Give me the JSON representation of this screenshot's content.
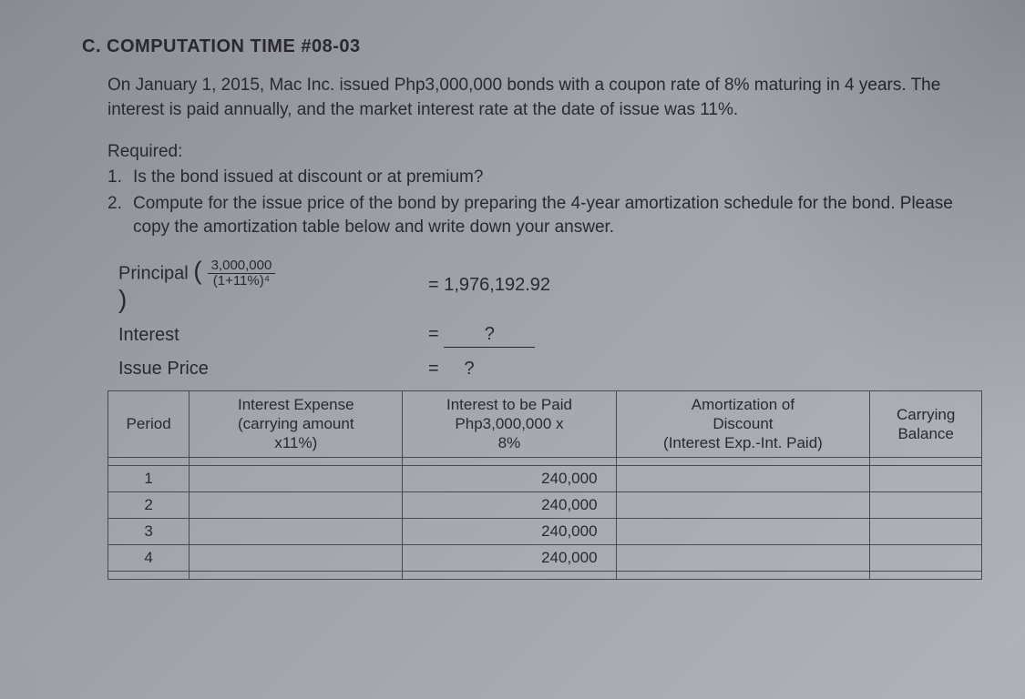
{
  "heading": "C. COMPUTATION TIME #08-03",
  "paragraph": "On January 1, 2015, Mac Inc. issued Php3,000,000 bonds with a coupon rate of 8% maturing in 4 years. The interest is paid annually, and the market interest rate at the date of issue was 11%.",
  "required_label": "Required:",
  "req1_num": "1.",
  "req1_text": "Is the bond issued at discount or at premium?",
  "req2_num": "2.",
  "req2_text": "Compute for the issue price of the bond by preparing the 4-year amortization schedule for the bond. Please copy the amortization table below and write down your answer.",
  "principal_label": "Principal",
  "frac_num": "3,000,000",
  "frac_den": "(1+11%)⁴",
  "principal_result": "= 1,976,192.92",
  "interest_label": "Interest",
  "interest_eq": "=",
  "interest_result": "?",
  "issue_label": "Issue Price",
  "issue_eq": "=",
  "issue_result": "?",
  "table": {
    "headers": {
      "period": "Period",
      "interest_expense": "Interest Expense\n(carrying amount\nx11%)",
      "interest_paid": "Interest to be Paid\nPhp3,000,000 x\n8%",
      "amortization": "Amortization of\nDiscount\n(Interest Exp.-Int. Paid)",
      "carrying": "Carrying\nBalance"
    },
    "rows": [
      {
        "period": "",
        "ie": "",
        "itp": "",
        "amort": "",
        "carry": ""
      },
      {
        "period": "1",
        "ie": "",
        "itp": "240,000",
        "amort": "",
        "carry": ""
      },
      {
        "period": "2",
        "ie": "",
        "itp": "240,000",
        "amort": "",
        "carry": ""
      },
      {
        "period": "3",
        "ie": "",
        "itp": "240,000",
        "amort": "",
        "carry": ""
      },
      {
        "period": "4",
        "ie": "",
        "itp": "240,000",
        "amort": "",
        "carry": ""
      },
      {
        "period": "",
        "ie": "",
        "itp": "",
        "amort": "",
        "carry": ""
      }
    ]
  },
  "colors": {
    "text": "#2a2a2e",
    "border": "#4a4a4e",
    "bg_start": "#8a8d94",
    "bg_end": "#b0b3ba"
  }
}
